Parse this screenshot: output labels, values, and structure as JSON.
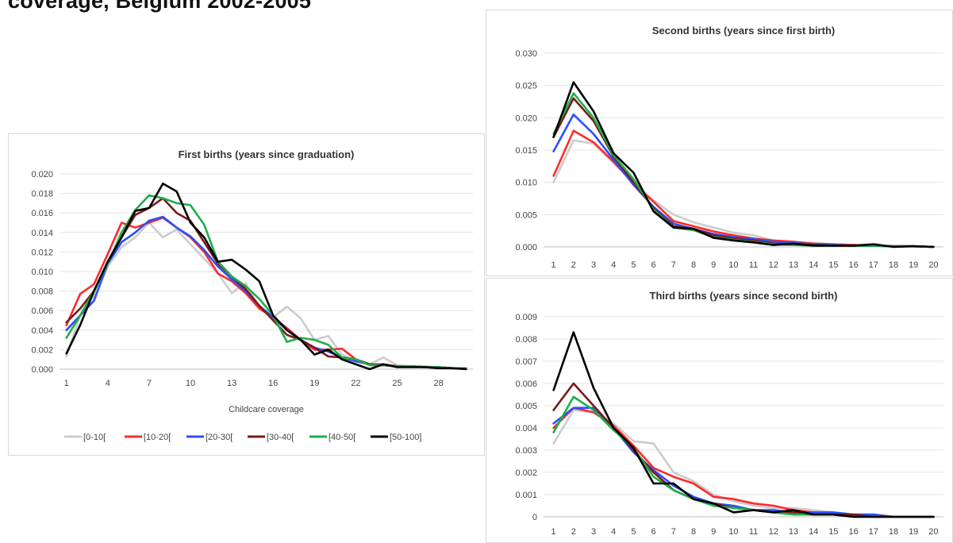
{
  "heading": "coverage, Belgium 2002-2005",
  "colors": {
    "[0-10[": "#cccccc",
    "[10-20[": "#ff2a2a",
    "[20-30[": "#2a4fff",
    "[30-40[": "#7a1a1a",
    "[40-50[": "#1fad4a",
    "[50-100]": "#000000"
  },
  "chart_data": [
    {
      "id": "first",
      "type": "line",
      "title": "First births (years since graduation)",
      "xlabel": "Childcare coverage",
      "ylabel": "",
      "x": [
        1,
        2,
        3,
        4,
        5,
        6,
        7,
        8,
        9,
        10,
        11,
        12,
        13,
        14,
        15,
        16,
        17,
        18,
        19,
        20,
        21,
        22,
        23,
        24,
        25,
        26,
        27,
        28,
        29,
        30
      ],
      "xticks": [
        1,
        4,
        7,
        10,
        13,
        16,
        19,
        22,
        25,
        28
      ],
      "ylim": [
        0,
        0.02
      ],
      "yticks": [
        "0.000",
        "0.002",
        "0.004",
        "0.006",
        "0.008",
        "0.010",
        "0.012",
        "0.014",
        "0.016",
        "0.018",
        "0.020"
      ],
      "legend": "bottom",
      "grid": true,
      "series": [
        {
          "name": "[0-10[",
          "values": [
            0.0013,
            0.0055,
            0.0075,
            0.0105,
            0.0125,
            0.0135,
            0.015,
            0.0135,
            0.0143,
            0.0128,
            0.0113,
            0.0098,
            0.0078,
            0.0088,
            0.0063,
            0.0053,
            0.0064,
            0.0052,
            0.003,
            0.0034,
            0.0015,
            0.0008,
            0.0005,
            0.0012,
            0.0004,
            0.0003,
            0.0003,
            0.0002,
            0.0001,
            0.0001
          ]
        },
        {
          "name": "[10-20[",
          "values": [
            0.0045,
            0.0077,
            0.0087,
            0.0118,
            0.015,
            0.0145,
            0.015,
            0.0155,
            0.0145,
            0.0135,
            0.012,
            0.0098,
            0.009,
            0.0078,
            0.0062,
            0.0053,
            0.0042,
            0.003,
            0.002,
            0.002,
            0.0021,
            0.001,
            0.0005,
            0.0005,
            0.0003,
            0.0003,
            0.0002,
            0.0002,
            0.0001,
            0.0001
          ]
        },
        {
          "name": "[20-30[",
          "values": [
            0.004,
            0.0055,
            0.007,
            0.0108,
            0.013,
            0.014,
            0.0152,
            0.0156,
            0.0145,
            0.0136,
            0.0122,
            0.0105,
            0.0092,
            0.008,
            0.0065,
            0.0053,
            0.004,
            0.003,
            0.0022,
            0.0018,
            0.0012,
            0.0008,
            0.0005,
            0.0004,
            0.0003,
            0.0003,
            0.0002,
            0.0002,
            0.0001,
            0.0001
          ]
        },
        {
          "name": "[30-40[",
          "values": [
            0.0048,
            0.0062,
            0.008,
            0.011,
            0.0135,
            0.0158,
            0.0165,
            0.0175,
            0.016,
            0.0152,
            0.013,
            0.0108,
            0.0095,
            0.0082,
            0.0065,
            0.005,
            0.0035,
            0.003,
            0.0022,
            0.0013,
            0.0012,
            0.001,
            0.0005,
            0.0004,
            0.0003,
            0.0003,
            0.0002,
            0.0002,
            0.0001,
            0.0001
          ]
        },
        {
          "name": "[40-50[",
          "values": [
            0.0032,
            0.0055,
            0.008,
            0.0108,
            0.014,
            0.0163,
            0.0178,
            0.0175,
            0.017,
            0.0168,
            0.0148,
            0.011,
            0.0095,
            0.0085,
            0.0072,
            0.0055,
            0.0028,
            0.0032,
            0.003,
            0.0025,
            0.0012,
            0.001,
            0.0004,
            0.0004,
            0.0003,
            0.0003,
            0.0002,
            0.0002,
            0.0001,
            0.0001
          ]
        },
        {
          "name": "[50-100]",
          "values": [
            0.0016,
            0.0045,
            0.008,
            0.011,
            0.0135,
            0.0162,
            0.0165,
            0.019,
            0.0182,
            0.015,
            0.0135,
            0.011,
            0.0112,
            0.0102,
            0.009,
            0.0055,
            0.004,
            0.003,
            0.0015,
            0.002,
            0.001,
            0.0005,
            0.0,
            0.0005,
            0.0002,
            0.0002,
            0.0002,
            0.0001,
            0.0001,
            0.0
          ]
        }
      ]
    },
    {
      "id": "second",
      "type": "line",
      "title": "Second births (years since first birth)",
      "xlabel": "",
      "ylabel": "",
      "x": [
        1,
        2,
        3,
        4,
        5,
        6,
        7,
        8,
        9,
        10,
        11,
        12,
        13,
        14,
        15,
        16,
        17,
        18,
        19,
        20
      ],
      "xticks": [
        1,
        2,
        3,
        4,
        5,
        6,
        7,
        8,
        9,
        10,
        11,
        12,
        13,
        14,
        15,
        16,
        17,
        18,
        19,
        20
      ],
      "ylim": [
        0,
        0.03
      ],
      "yticks": [
        "0.000",
        "0.005",
        "0.010",
        "0.015",
        "0.020",
        "0.025",
        "0.030"
      ],
      "grid": true,
      "series": [
        {
          "name": "[0-10[",
          "values": [
            0.01,
            0.0165,
            0.016,
            0.013,
            0.01,
            0.0072,
            0.005,
            0.0038,
            0.003,
            0.0022,
            0.0018,
            0.001,
            0.0008,
            0.0006,
            0.0004,
            0.0003,
            0.0002,
            0.0001,
            0.0001,
            0.0
          ]
        },
        {
          "name": "[10-20[",
          "values": [
            0.011,
            0.018,
            0.0162,
            0.0132,
            0.0098,
            0.007,
            0.004,
            0.0032,
            0.0024,
            0.0018,
            0.0013,
            0.001,
            0.0008,
            0.0005,
            0.0004,
            0.0003,
            0.0002,
            0.0001,
            0.0001,
            0.0
          ]
        },
        {
          "name": "[20-30[",
          "values": [
            0.0148,
            0.0205,
            0.0175,
            0.0135,
            0.0096,
            0.0062,
            0.0036,
            0.0028,
            0.002,
            0.0015,
            0.0012,
            0.0008,
            0.0006,
            0.0004,
            0.0003,
            0.0002,
            0.0002,
            0.0001,
            0.0001,
            0.0
          ]
        },
        {
          "name": "[30-40[",
          "values": [
            0.017,
            0.023,
            0.0195,
            0.014,
            0.01,
            0.006,
            0.0032,
            0.0028,
            0.0018,
            0.0013,
            0.001,
            0.0005,
            0.0004,
            0.0003,
            0.0002,
            0.0002,
            0.0002,
            0.0001,
            0.0001,
            0.0
          ]
        },
        {
          "name": "[40-50[",
          "values": [
            0.0175,
            0.0238,
            0.02,
            0.0142,
            0.0105,
            0.0058,
            0.003,
            0.0026,
            0.0015,
            0.0011,
            0.0008,
            0.0004,
            0.0003,
            0.0002,
            0.0002,
            0.0002,
            0.0002,
            0.0001,
            0.0001,
            0.0
          ]
        },
        {
          "name": "[50-100]",
          "values": [
            0.017,
            0.0255,
            0.021,
            0.0145,
            0.0115,
            0.0055,
            0.003,
            0.0028,
            0.0014,
            0.001,
            0.0007,
            0.0003,
            0.0005,
            0.0002,
            0.0002,
            0.0002,
            0.0004,
            0.0,
            0.0001,
            0.0
          ]
        }
      ]
    },
    {
      "id": "third",
      "type": "line",
      "title": "Third births (years since second birth)",
      "xlabel": "",
      "ylabel": "",
      "x": [
        1,
        2,
        3,
        4,
        5,
        6,
        7,
        8,
        9,
        10,
        11,
        12,
        13,
        14,
        15,
        16,
        17,
        18,
        19,
        20
      ],
      "xticks": [
        1,
        2,
        3,
        4,
        5,
        6,
        7,
        8,
        9,
        10,
        11,
        12,
        13,
        14,
        15,
        16,
        17,
        18,
        19,
        20
      ],
      "ylim": [
        0,
        0.009
      ],
      "yticks": [
        "0",
        "0.001",
        "0.002",
        "0.003",
        "0.004",
        "0.005",
        "0.006",
        "0.007",
        "0.008",
        "0.009"
      ],
      "grid": true,
      "series": [
        {
          "name": "[0-10[",
          "values": [
            0.0033,
            0.0048,
            0.0047,
            0.0042,
            0.0034,
            0.0033,
            0.002,
            0.0016,
            0.001,
            0.0007,
            0.0005,
            0.0004,
            0.0004,
            0.0003,
            0.0002,
            0.0001,
            0.0001,
            0.0,
            0.0,
            0.0
          ]
        },
        {
          "name": "[10-20[",
          "values": [
            0.004,
            0.0049,
            0.0047,
            0.0041,
            0.0032,
            0.0022,
            0.0018,
            0.0015,
            0.0009,
            0.0008,
            0.0006,
            0.0005,
            0.0003,
            0.0002,
            0.0001,
            0.0001,
            0.0001,
            0.0,
            0.0,
            0.0
          ]
        },
        {
          "name": "[20-30[",
          "values": [
            0.0042,
            0.0049,
            0.0049,
            0.004,
            0.0029,
            0.0021,
            0.0014,
            0.0009,
            0.0006,
            0.0005,
            0.0003,
            0.0003,
            0.0002,
            0.0002,
            0.0002,
            0.0001,
            0.0001,
            0.0,
            0.0,
            0.0
          ]
        },
        {
          "name": "[30-40[",
          "values": [
            0.0048,
            0.006,
            0.005,
            0.004,
            0.003,
            0.002,
            0.0012,
            0.0008,
            0.0006,
            0.0004,
            0.0003,
            0.0002,
            0.0002,
            0.0001,
            0.0001,
            0.0001,
            0.0,
            0.0,
            0.0,
            0.0
          ]
        },
        {
          "name": "[40-50[",
          "values": [
            0.0038,
            0.0054,
            0.0048,
            0.0039,
            0.0031,
            0.0018,
            0.0012,
            0.0008,
            0.0005,
            0.0004,
            0.0003,
            0.0002,
            0.0001,
            0.0001,
            0.0001,
            0.0,
            0.0,
            0.0,
            0.0,
            0.0
          ]
        },
        {
          "name": "[50-100]",
          "values": [
            0.0057,
            0.0083,
            0.0058,
            0.004,
            0.0031,
            0.0015,
            0.0015,
            0.0008,
            0.0006,
            0.0002,
            0.0003,
            0.0002,
            0.0003,
            0.0001,
            0.0001,
            0.0,
            0.0,
            0.0,
            0.0,
            0.0
          ]
        }
      ]
    }
  ]
}
